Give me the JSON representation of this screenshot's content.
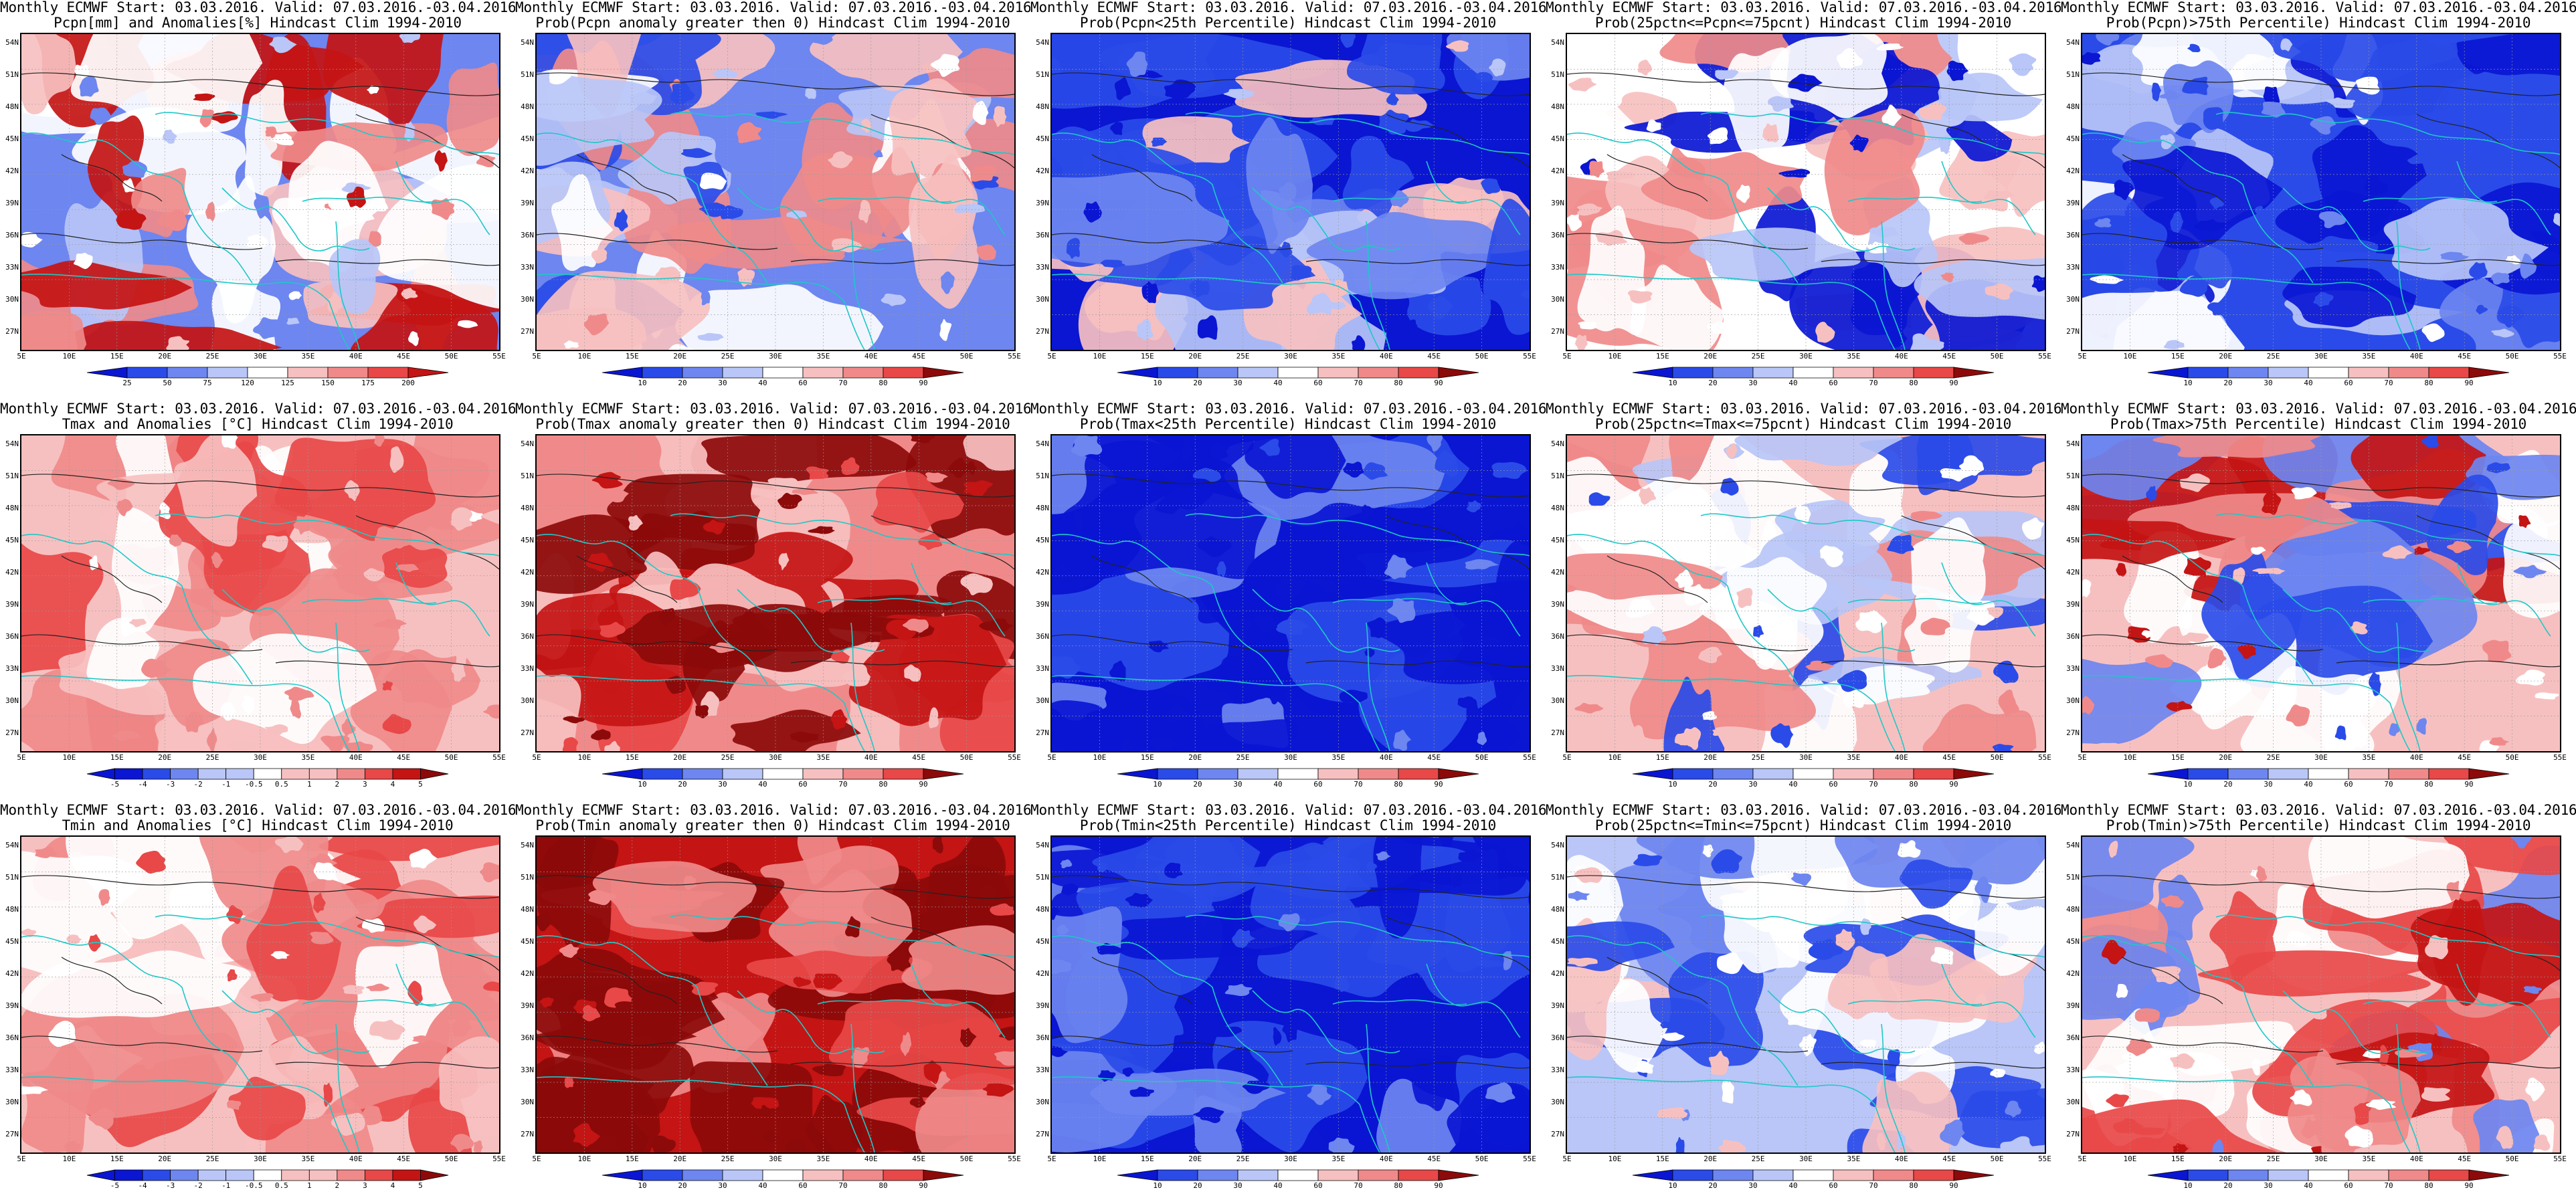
{
  "colors": {
    "blue3": "#0a16d2",
    "blue2": "#2a4be8",
    "blue1": "#6d86f0",
    "blue0": "#b9c6f7",
    "white": "#ffffff",
    "red0": "#f7c0c0",
    "red1": "#f08a8a",
    "red2": "#e84848",
    "red3": "#c41414",
    "red4": "#8c0a0a",
    "coast": "#1ec8c8",
    "contour": "#222222"
  },
  "axes": {
    "lat_labels": [
      "54N",
      "51N",
      "48N",
      "45N",
      "42N",
      "39N",
      "36N",
      "33N",
      "30N",
      "27N"
    ],
    "lon_labels": [
      "5E",
      "10E",
      "15E",
      "20E",
      "25E",
      "30E",
      "35E",
      "40E",
      "45E",
      "50E",
      "55E"
    ]
  },
  "colorbars": {
    "pcpn_anom": {
      "labels": [
        "25",
        "50",
        "75",
        "120",
        "125",
        "150",
        "175",
        "200"
      ],
      "colors": [
        "blue3",
        "blue2",
        "blue1",
        "blue0",
        "white",
        "red0",
        "red1",
        "red2",
        "red3"
      ]
    },
    "prob": {
      "labels": [
        "10",
        "20",
        "30",
        "40",
        "60",
        "70",
        "80",
        "90"
      ],
      "colors": [
        "blue3",
        "blue2",
        "blue1",
        "blue0",
        "white",
        "red0",
        "red1",
        "red2",
        "red4"
      ]
    },
    "temp_anom": {
      "labels": [
        "-5",
        "-4",
        "-3",
        "-2",
        "-1",
        "-0.5",
        "0.5",
        "1",
        "2",
        "3",
        "4",
        "5"
      ],
      "colors": [
        "blue3",
        "blue3",
        "blue2",
        "blue1",
        "blue0",
        "blue0",
        "white",
        "red0",
        "red0",
        "red1",
        "red2",
        "red3",
        "red4"
      ]
    }
  },
  "panels": [
    {
      "id": "p1",
      "title1": "Monthly ECMWF Start: 03.03.2016. Valid: 07.03.2016.-03.04.2016.",
      "title2": "Pcpn[mm] and Anomalies[%] Hindcast Clim 1994-2010",
      "palette": [
        "blue1",
        "blue0",
        "white",
        "white",
        "red0",
        "red1",
        "red3"
      ],
      "cbar": "pcpn_anom"
    },
    {
      "id": "p2",
      "title1": "Monthly ECMWF Start: 03.03.2016. Valid: 07.03.2016.-03.04.2016.",
      "title2": "Prob(Pcpn anomaly greater then 0) Hindcast Clim 1994-2010",
      "palette": [
        "blue1",
        "blue0",
        "white",
        "red0",
        "red1",
        "blue2"
      ],
      "cbar": "prob"
    },
    {
      "id": "p3",
      "title1": "Monthly ECMWF Start: 03.03.2016. Valid: 07.03.2016.-03.04.2016.",
      "title2": "Prob(Pcpn<25th Percentile) Hindcast Clim 1994-2010",
      "palette": [
        "blue3",
        "blue2",
        "blue2",
        "blue1",
        "blue0",
        "red0"
      ],
      "cbar": "prob"
    },
    {
      "id": "p4",
      "title1": "Monthly ECMWF Start: 03.03.2016. Valid: 07.03.2016.-03.04.2016.",
      "title2": "Prob(25pctn<=Pcpn<=75pcnt) Hindcast Clim 1994-2010",
      "palette": [
        "white",
        "red0",
        "blue0",
        "white",
        "red1",
        "blue3"
      ],
      "cbar": "prob"
    },
    {
      "id": "p5",
      "title1": "Monthly ECMWF Start: 03.03.2016. Valid: 07.03.2016.-03.04.2016.",
      "title2": "Prob(Pcpn)>75th Percentile) Hindcast Clim 1994-2010",
      "palette": [
        "blue2",
        "blue1",
        "blue3",
        "blue0",
        "blue2",
        "white"
      ],
      "cbar": "prob"
    },
    {
      "id": "p6",
      "title1": "Monthly ECMWF Start: 03.03.2016. Valid: 07.03.2016.-03.04.2016.",
      "title2": "Tmax and Anomalies [°C] Hindcast Clim 1994-2010",
      "palette": [
        "red0",
        "red1",
        "red0",
        "white",
        "red2",
        "red1"
      ],
      "cbar": "temp_anom"
    },
    {
      "id": "p7",
      "title1": "Monthly ECMWF Start: 03.03.2016. Valid: 07.03.2016.-03.04.2016.",
      "title2": "Prob(Tmax anomaly greater then 0) Hindcast Clim 1994-2010",
      "palette": [
        "red1",
        "red3",
        "red4",
        "red2",
        "red0",
        "red4"
      ],
      "cbar": "prob"
    },
    {
      "id": "p8",
      "title1": "Monthly ECMWF Start: 03.03.2016. Valid: 07.03.2016.-03.04.2016.",
      "title2": "Prob(Tmax<25th Percentile) Hindcast Clim 1994-2010",
      "palette": [
        "blue3",
        "blue3",
        "blue2",
        "blue3",
        "blue1",
        "blue3"
      ],
      "cbar": "prob"
    },
    {
      "id": "p9",
      "title1": "Monthly ECMWF Start: 03.03.2016. Valid: 07.03.2016.-03.04.2016.",
      "title2": "Prob(25pctn<=Tmax<=75pcnt) Hindcast Clim 1994-2010",
      "palette": [
        "red0",
        "white",
        "blue0",
        "red1",
        "blue2",
        "white"
      ],
      "cbar": "prob"
    },
    {
      "id": "p10",
      "title1": "Monthly ECMWF Start: 03.03.2016. Valid: 07.03.2016.-03.04.2016.",
      "title2": "Prob(Tmax>75th Percentile) Hindcast Clim 1994-2010",
      "palette": [
        "red0",
        "blue1",
        "red1",
        "white",
        "blue2",
        "red3"
      ],
      "cbar": "prob"
    },
    {
      "id": "p11",
      "title1": "Monthly ECMWF Start: 03.03.2016. Valid: 07.03.2016.-03.04.2016.",
      "title2": "Tmin and Anomalies [°C] Hindcast Clim 1994-2010",
      "palette": [
        "red0",
        "red1",
        "white",
        "red0",
        "red2",
        "red1"
      ],
      "cbar": "temp_anom"
    },
    {
      "id": "p12",
      "title1": "Monthly ECMWF Start: 03.03.2016. Valid: 07.03.2016.-03.04.2016.",
      "title2": "Prob(Tmin anomaly greater then 0) Hindcast Clim 1994-2010",
      "palette": [
        "red3",
        "red4",
        "red2",
        "red4",
        "red1",
        "red4"
      ],
      "cbar": "prob"
    },
    {
      "id": "p13",
      "title1": "Monthly ECMWF Start: 03.03.2016. Valid: 07.03.2016.-03.04.2016.",
      "title2": "Prob(Tmin<25th Percentile) Hindcast Clim 1994-2010",
      "palette": [
        "blue3",
        "blue3",
        "blue2",
        "blue3",
        "blue1",
        "blue3"
      ],
      "cbar": "prob"
    },
    {
      "id": "p14",
      "title1": "Monthly ECMWF Start: 03.03.2016. Valid: 07.03.2016.-03.04.2016.",
      "title2": "Prob(25pctn<=Tmin<=75pcnt) Hindcast Clim 1994-2010",
      "palette": [
        "blue0",
        "white",
        "blue1",
        "red0",
        "blue2",
        "white"
      ],
      "cbar": "prob"
    },
    {
      "id": "p15",
      "title1": "Monthly ECMWF Start: 03.03.2016. Valid: 07.03.2016.-03.04.2016.",
      "title2": "Prob(Tmin)>75th Percentile) Hindcast Clim 1994-2010",
      "palette": [
        "red0",
        "red1",
        "blue1",
        "red2",
        "white",
        "red3"
      ],
      "cbar": "prob"
    }
  ]
}
